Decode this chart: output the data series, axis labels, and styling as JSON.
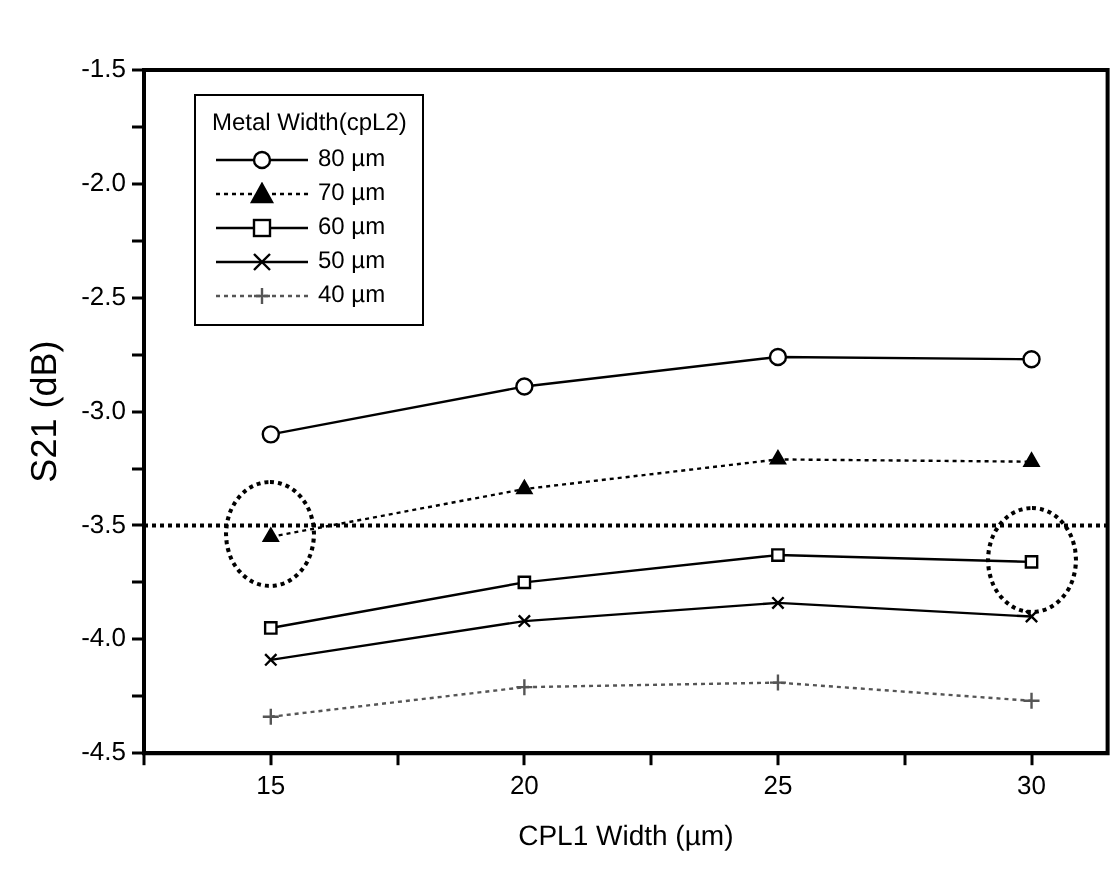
{
  "chart_data": {
    "type": "line",
    "xlabel": "CPL1 Width (µm)",
    "ylabel": "S21 (dB)",
    "legend_title": "Metal Width(cpL2)",
    "x": [
      15,
      20,
      25,
      30
    ],
    "series": [
      {
        "name": "80 µm",
        "color": "#000000",
        "marker": "circle",
        "line_style": "solid",
        "values": [
          -3.1,
          -2.89,
          -2.76,
          -2.77
        ]
      },
      {
        "name": "70 µm",
        "color": "#000000",
        "marker": "triangle",
        "line_style": "dotted",
        "values": [
          -3.55,
          -3.34,
          -3.21,
          -3.22
        ]
      },
      {
        "name": "60 µm",
        "color": "#000000",
        "marker": "square",
        "line_style": "solid",
        "values": [
          -3.95,
          -3.75,
          -3.63,
          -3.66
        ]
      },
      {
        "name": "50 µm",
        "color": "#000000",
        "marker": "cross",
        "line_style": "solid",
        "values": [
          -4.09,
          -3.92,
          -3.84,
          -3.9
        ]
      },
      {
        "name": "40 µm",
        "color": "#555555",
        "marker": "plus",
        "line_style": "dotted",
        "values": [
          -4.34,
          -4.21,
          -4.19,
          -4.27
        ]
      }
    ],
    "xlim": [
      12.5,
      31.5
    ],
    "xticks": [
      {
        "value": 12.5,
        "label": null
      },
      15,
      {
        "value": 17.5,
        "label": null
      },
      20,
      {
        "value": 22.5,
        "label": null
      },
      25,
      {
        "value": 27.5,
        "label": null
      },
      30
    ],
    "ylim": [
      -4.5,
      -1.5
    ],
    "yticks": [
      -4.5,
      {
        "value": -4.25,
        "label": null
      },
      {
        "value": -4,
        "label": "-4.0"
      },
      {
        "value": -3.75,
        "label": null
      },
      -3.5,
      {
        "value": -3.25,
        "label": null
      },
      {
        "value": -3,
        "label": "-3.0"
      },
      {
        "value": -2.75,
        "label": null
      },
      -2.5,
      {
        "value": -2.25,
        "label": null
      },
      {
        "value": -2,
        "label": "-2.0"
      },
      {
        "value": -1.75,
        "label": null
      },
      -1.5
    ],
    "ref_lines": [
      {
        "axis": "y",
        "value": -3.5,
        "line_style": "dotted",
        "color": "#000000"
      }
    ],
    "legend": "top left",
    "grid": false
  }
}
